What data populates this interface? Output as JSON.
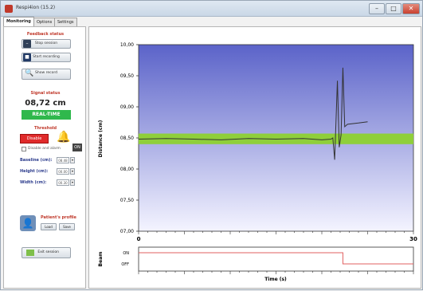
{
  "window": {
    "title": "Respi4ion (15.2)",
    "minimize_glyph": "–",
    "maximize_glyph": "□",
    "close_glyph": "✕"
  },
  "tabs": [
    {
      "label": "Monitoring",
      "active": true
    },
    {
      "label": "Options",
      "active": false
    },
    {
      "label": "Settings",
      "active": false
    }
  ],
  "left_panel": {
    "feedback_title": "Feedback status",
    "stop_label": "Stop session",
    "record_label": "Start recording",
    "search_label": "Show record",
    "signal_title": "Signal status",
    "measurement_value": "08,72 cm",
    "mode_badge": "REAL-TIME",
    "threshold_title": "Threshold",
    "disable_label": "Disable",
    "disable_checkbox_label": "Disable and alarm",
    "speaker_label": "ON",
    "baseline_label": "Baseline (cm):",
    "baseline_value": "08.48",
    "height_label": "Height (cm):",
    "height_value": "00.00",
    "width_label": "Width (cm):",
    "width_value": "00.30",
    "patient_title": "Patient's profile",
    "load_label": "Load",
    "save_label": "Save",
    "exit_label": "Exit session"
  },
  "chart_data": {
    "type": "line",
    "ylabel": "Distance (cm)",
    "xlabel": "Time (s)",
    "xlim": [
      0,
      30
    ],
    "ylim": [
      7.0,
      10.0
    ],
    "x_ticks": [
      0,
      30
    ],
    "y_tick_labels": [
      "10,00",
      "09,50",
      "09,00",
      "08,50",
      "08,00",
      "07,50",
      "07,00"
    ],
    "y_ticks": [
      10.0,
      9.5,
      9.0,
      8.5,
      8.0,
      7.5,
      7.0
    ],
    "band": {
      "ymin": 8.4,
      "ymax": 8.57,
      "color": "#8fcf3a"
    },
    "series": [
      {
        "color": "#333333",
        "points": [
          [
            0,
            8.48
          ],
          [
            3,
            8.49
          ],
          [
            6,
            8.48
          ],
          [
            9,
            8.47
          ],
          [
            12,
            8.49
          ],
          [
            15,
            8.48
          ],
          [
            18,
            8.49
          ],
          [
            20,
            8.47
          ],
          [
            21,
            8.48
          ],
          [
            21.2,
            8.5
          ],
          [
            21.4,
            8.15
          ],
          [
            21.7,
            9.42
          ],
          [
            21.9,
            8.35
          ],
          [
            22.1,
            8.55
          ],
          [
            22.3,
            9.63
          ],
          [
            22.5,
            8.68
          ],
          [
            22.8,
            8.72
          ],
          [
            24,
            8.74
          ],
          [
            25,
            8.76
          ]
        ]
      }
    ],
    "background_top": "#5b63c9",
    "background_bottom": "#f4f4ff"
  },
  "beam_chart": {
    "ylabel": "Beam",
    "on_label": "ON",
    "off_label": "OFF",
    "switch_time": 22.3,
    "color": "#e06060"
  }
}
